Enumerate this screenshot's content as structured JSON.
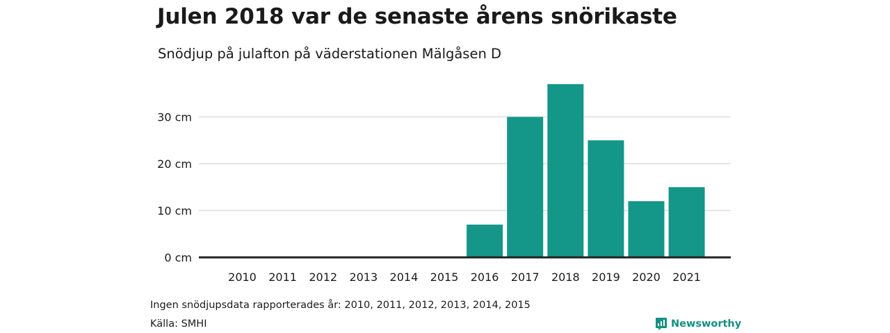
{
  "title": "Julen 2018 var de senaste årens snörikaste",
  "subtitle": "Snödjup på julafton på väderstationen Mälgåsen D",
  "note": "Ingen snödjupsdata rapporterades år: 2010, 2011, 2012, 2013, 2014, 2015",
  "source": "Källa: SMHI",
  "brand": {
    "name": "Newsworthy",
    "icon": "newsworthy-logo-icon"
  },
  "colors": {
    "bar": "#149688",
    "baseline": "#222222",
    "grid": "#dddddd",
    "brand": "#148f82"
  },
  "chart_data": {
    "type": "bar",
    "categories": [
      "2010",
      "2011",
      "2012",
      "2013",
      "2014",
      "2015",
      "2016",
      "2017",
      "2018",
      "2019",
      "2020",
      "2021"
    ],
    "values": [
      null,
      null,
      null,
      null,
      null,
      null,
      7,
      30,
      37,
      25,
      12,
      15
    ],
    "ylim": [
      0,
      40
    ],
    "yticks": [
      0,
      10,
      20,
      30
    ],
    "ytick_labels": [
      "0 cm",
      "10 cm",
      "20 cm",
      "30 cm"
    ],
    "grid": true,
    "legend": "none"
  }
}
